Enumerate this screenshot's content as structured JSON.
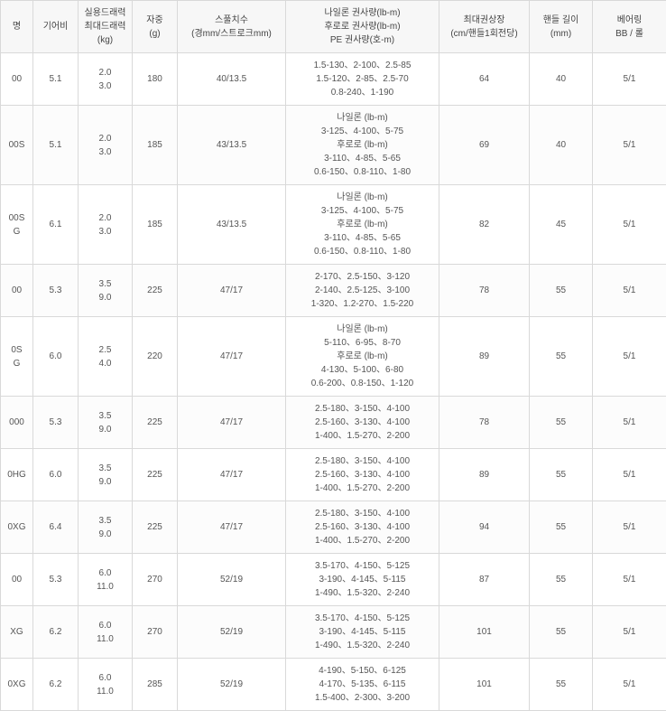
{
  "columns": [
    {
      "key": "name",
      "label": "명",
      "width": 36
    },
    {
      "key": "gear",
      "label": "기어비",
      "width": 50
    },
    {
      "key": "drag",
      "label": "실용드래력\n최대드래력\n(kg)",
      "width": 60
    },
    {
      "key": "weight",
      "label": "자중\n(g)",
      "width": 50
    },
    {
      "key": "spool",
      "label": "스풀치수\n(경mm/스트로크mm)",
      "width": 120
    },
    {
      "key": "line",
      "label": "나일론 권사량(lb-m)\n후로로 권사량(lb-m)\nPE 권사량(호-m)",
      "width": 170
    },
    {
      "key": "retrieve",
      "label": "최대권상장\n(cm/핸들1회전당)",
      "width": 100
    },
    {
      "key": "handle",
      "label": "핸들 길이\n(mm)",
      "width": 70
    },
    {
      "key": "bearing",
      "label": "베어링\nBB / 롤",
      "width": 82
    }
  ],
  "rows": [
    {
      "name": "00",
      "gear": "5.1",
      "drag": "2.0\n3.0",
      "weight": "180",
      "spool": "40/13.5",
      "line": "1.5-130、2-100、2.5-85\n1.5-120、2-85、2.5-70\n0.8-240、1-190",
      "retrieve": "64",
      "handle": "40",
      "bearing": "5/1"
    },
    {
      "name": "00S",
      "gear": "5.1",
      "drag": "2.0\n3.0",
      "weight": "185",
      "spool": "43/13.5",
      "line": "나일론 (lb-m)\n3-125、4-100、5-75\n후로로 (lb-m)\n3-110、4-85、5-65\n0.6-150、0.8-110、1-80",
      "retrieve": "69",
      "handle": "40",
      "bearing": "5/1"
    },
    {
      "name": "00S\nG",
      "gear": "6.1",
      "drag": "2.0\n3.0",
      "weight": "185",
      "spool": "43/13.5",
      "line": "나일론 (lb-m)\n3-125、4-100、5-75\n후로로 (lb-m)\n3-110、4-85、5-65\n0.6-150、0.8-110、1-80",
      "retrieve": "82",
      "handle": "45",
      "bearing": "5/1"
    },
    {
      "name": "00",
      "gear": "5.3",
      "drag": "3.5\n9.0",
      "weight": "225",
      "spool": "47/17",
      "line": "2-170、2.5-150、3-120\n2-140、2.5-125、3-100\n1-320、1.2-270、1.5-220",
      "retrieve": "78",
      "handle": "55",
      "bearing": "5/1"
    },
    {
      "name": "0S\nG",
      "gear": "6.0",
      "drag": "2.5\n4.0",
      "weight": "220",
      "spool": "47/17",
      "line": "나일론 (lb-m)\n5-110、6-95、8-70\n후로로 (lb-m)\n4-130、5-100、6-80\n0.6-200、0.8-150、1-120",
      "retrieve": "89",
      "handle": "55",
      "bearing": "5/1"
    },
    {
      "name": "000",
      "gear": "5.3",
      "drag": "3.5\n9.0",
      "weight": "225",
      "spool": "47/17",
      "line": "2.5-180、3-150、4-100\n2.5-160、3-130、4-100\n1-400、1.5-270、2-200",
      "retrieve": "78",
      "handle": "55",
      "bearing": "5/1"
    },
    {
      "name": "0HG",
      "gear": "6.0",
      "drag": "3.5\n9.0",
      "weight": "225",
      "spool": "47/17",
      "line": "2.5-180、3-150、4-100\n2.5-160、3-130、4-100\n1-400、1.5-270、2-200",
      "retrieve": "89",
      "handle": "55",
      "bearing": "5/1"
    },
    {
      "name": "0XG",
      "gear": "6.4",
      "drag": "3.5\n9.0",
      "weight": "225",
      "spool": "47/17",
      "line": "2.5-180、3-150、4-100\n2.5-160、3-130、4-100\n1-400、1.5-270、2-200",
      "retrieve": "94",
      "handle": "55",
      "bearing": "5/1"
    },
    {
      "name": "00",
      "gear": "5.3",
      "drag": "6.0\n11.0",
      "weight": "270",
      "spool": "52/19",
      "line": "3.5-170、4-150、5-125\n3-190、4-145、5-115\n1-490、1.5-320、2-240",
      "retrieve": "87",
      "handle": "55",
      "bearing": "5/1"
    },
    {
      "name": "XG",
      "gear": "6.2",
      "drag": "6.0\n11.0",
      "weight": "270",
      "spool": "52/19",
      "line": "3.5-170、4-150、5-125\n3-190、4-145、5-115\n1-490、1.5-320、2-240",
      "retrieve": "101",
      "handle": "55",
      "bearing": "5/1"
    },
    {
      "name": "0XG",
      "gear": "6.2",
      "drag": "6.0\n11.0",
      "weight": "285",
      "spool": "52/19",
      "line": "4-190、5-150、6-125\n4-170、5-135、6-115\n1.5-400、2-300、3-200",
      "retrieve": "101",
      "handle": "55",
      "bearing": "5/1"
    }
  ],
  "colors": {
    "border": "#d9d9d9",
    "header_bg": "#f7f7f7",
    "text": "#555555"
  }
}
